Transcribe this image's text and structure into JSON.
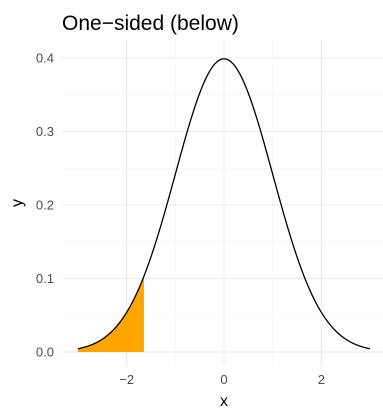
{
  "chart_data": {
    "type": "area",
    "title": "One−sided (below)",
    "xlabel": "x",
    "ylabel": "y",
    "xlim": [
      -3.0,
      3.0
    ],
    "ylim": [
      0.0,
      0.4
    ],
    "xticks": [
      -2,
      0,
      2
    ],
    "xtick_labels": [
      "−2",
      "0",
      "2"
    ],
    "yticks": [
      0.0,
      0.1,
      0.2,
      0.3,
      0.4
    ],
    "ytick_labels": [
      "0.0",
      "0.1",
      "0.2",
      "0.3",
      "0.4"
    ],
    "grid": true,
    "series": [
      {
        "kind": "line",
        "x": [
          -3.0,
          -2.75,
          -2.5,
          -2.25,
          -2.0,
          -1.75,
          -1.5,
          -1.25,
          -1.0,
          -0.75,
          -0.5,
          -0.25,
          0.0,
          0.25,
          0.5,
          0.75,
          1.0,
          1.25,
          1.5,
          1.75,
          2.0,
          2.25,
          2.5,
          2.75,
          3.0
        ],
        "y": [
          0.0044,
          0.0091,
          0.0175,
          0.0317,
          0.054,
          0.0863,
          0.1295,
          0.1826,
          0.242,
          0.3011,
          0.3521,
          0.3867,
          0.3989,
          0.3867,
          0.3521,
          0.3011,
          0.242,
          0.1826,
          0.1295,
          0.0863,
          0.054,
          0.0317,
          0.0175,
          0.0091,
          0.0044
        ],
        "color": "#000000"
      },
      {
        "kind": "shaded_area",
        "x": [
          -3.0,
          -2.75,
          -2.5,
          -2.25,
          -2.0,
          -1.75,
          -1.645
        ],
        "y": [
          0.0044,
          0.0091,
          0.0175,
          0.0317,
          0.054,
          0.0863,
          0.1031
        ],
        "color": "#FFA500"
      }
    ]
  }
}
